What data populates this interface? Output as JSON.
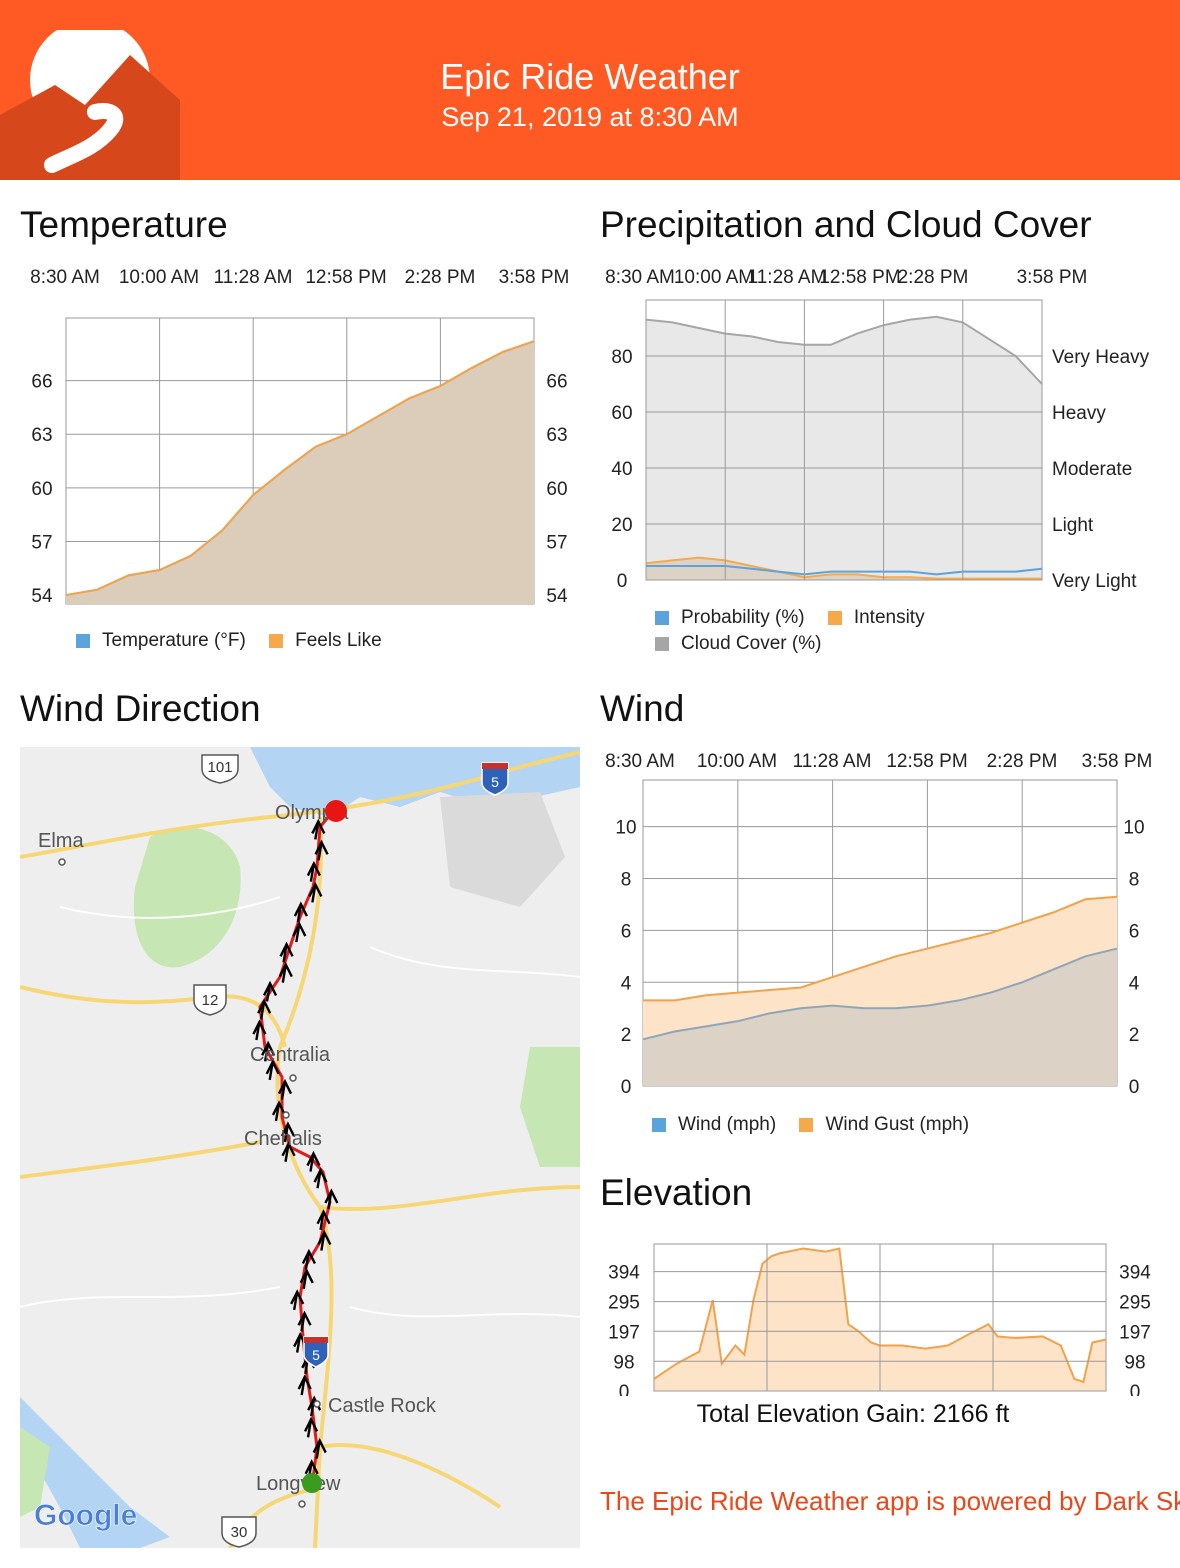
{
  "header": {
    "title": "Epic Ride Weather",
    "subtitle": "Sep 21, 2019 at 8:30 AM",
    "colors": {
      "brand": "#ff5a23",
      "logo_dark": "#d6481c"
    },
    "logo_icon": "road-mountain-logo-icon"
  },
  "temperature": {
    "title": "Temperature",
    "x_ticks": [
      "8:30 AM",
      "10:00 AM",
      "11:28 AM",
      "12:58 PM",
      "2:28 PM",
      "3:58 PM"
    ],
    "y_ticks": [
      "54",
      "57",
      "60",
      "63",
      "66"
    ],
    "legend": [
      {
        "label": "Temperature (°F)",
        "color": "#5ba3dc"
      },
      {
        "label": "Feels Like",
        "color": "#f6a94a"
      }
    ]
  },
  "precipitation": {
    "title": "Precipitation and Cloud Cover",
    "x_ticks": [
      "8:30 AM",
      "10:00 AM",
      "11:28 AM",
      "12:58 PM",
      "2:28 PM",
      "3:58 PM"
    ],
    "y_ticks": [
      "0",
      "20",
      "40",
      "60",
      "80"
    ],
    "intensity_labels": [
      "Very Light",
      "Light",
      "Moderate",
      "Heavy",
      "Very Heavy"
    ],
    "legend": [
      {
        "label": "Probability (%)",
        "color": "#5ba3dc"
      },
      {
        "label": "Intensity",
        "color": "#f6a94a"
      },
      {
        "label": "Cloud Cover (%)",
        "color": "#a6a6a6"
      }
    ]
  },
  "wind_direction": {
    "title": "Wind Direction",
    "map_labels": {
      "olympia": "Olympia",
      "elma": "Elma",
      "centralia": "Centralia",
      "chehalis": "Chehalis",
      "castle_rock": "Castle Rock",
      "longview": "Longview",
      "hwy_101": "101",
      "hwy_12": "12",
      "hwy_30": "30",
      "i5_north": "5",
      "i5_south": "5",
      "google": "Google"
    },
    "colors": {
      "route": "#e01b1b",
      "start": "#3a9b1f",
      "end": "#e81515",
      "wind_arrow": "#000000"
    }
  },
  "wind": {
    "title": "Wind",
    "x_ticks": [
      "8:30 AM",
      "10:00 AM",
      "11:28 AM",
      "12:58 PM",
      "2:28 PM",
      "3:58 PM"
    ],
    "y_ticks": [
      "0",
      "2",
      "4",
      "6",
      "8",
      "10"
    ],
    "legend": [
      {
        "label": "Wind (mph)",
        "color": "#5ba3dc"
      },
      {
        "label": "Wind Gust (mph)",
        "color": "#f6a94a"
      }
    ]
  },
  "elevation": {
    "title": "Elevation",
    "y_ticks": [
      "0",
      "98",
      "197",
      "295",
      "394"
    ],
    "total_gain": "Total Elevation Gain: 2166 ft"
  },
  "footer_note": "The Epic Ride Weather app is powered by Dark Sky",
  "chart_data": [
    {
      "type": "area",
      "title": "Temperature",
      "x": [
        "8:30 AM",
        "9:00 AM",
        "9:30 AM",
        "10:00 AM",
        "10:30 AM",
        "11:00 AM",
        "11:28 AM",
        "12:00 PM",
        "12:30 PM",
        "12:58 PM",
        "1:30 PM",
        "2:00 PM",
        "2:28 PM",
        "3:00 PM",
        "3:30 PM",
        "3:58 PM"
      ],
      "series": [
        {
          "name": "Temperature (°F)",
          "values": [
            54.0,
            54.3,
            55.1,
            55.4,
            56.2,
            57.6,
            59.6,
            61.0,
            62.3,
            63.0,
            64.0,
            65.0,
            65.7,
            66.7,
            67.6,
            68.2
          ]
        },
        {
          "name": "Feels Like",
          "values": [
            54.0,
            54.3,
            55.1,
            55.4,
            56.2,
            57.6,
            59.6,
            61.0,
            62.3,
            63.0,
            64.0,
            65.0,
            65.7,
            66.7,
            67.6,
            68.2
          ]
        }
      ],
      "ylim": [
        53.5,
        69.5
      ],
      "grid": true,
      "legend": "bottom"
    },
    {
      "type": "area",
      "title": "Precipitation and Cloud Cover",
      "x": [
        "8:30 AM",
        "9:00 AM",
        "9:30 AM",
        "10:00 AM",
        "10:30 AM",
        "11:00 AM",
        "11:28 AM",
        "12:00 PM",
        "12:30 PM",
        "12:58 PM",
        "1:30 PM",
        "2:00 PM",
        "2:28 PM",
        "3:00 PM",
        "3:30 PM",
        "3:58 PM"
      ],
      "series": [
        {
          "name": "Cloud Cover (%)",
          "values": [
            93,
            92,
            90,
            88,
            87,
            85,
            84,
            84,
            88,
            91,
            93,
            94,
            92,
            86,
            80,
            70
          ]
        },
        {
          "name": "Probability (%)",
          "values": [
            5,
            5,
            5,
            5,
            4,
            3,
            2,
            3,
            3,
            3,
            3,
            2,
            3,
            3,
            3,
            4
          ]
        },
        {
          "name": "Intensity",
          "values": [
            6,
            7,
            8,
            7,
            5,
            3,
            1,
            2,
            2,
            1,
            1,
            0.5,
            0.5,
            0.5,
            0.5,
            0.5
          ]
        }
      ],
      "ylim": [
        0,
        100
      ],
      "grid": true,
      "legend": "bottom"
    },
    {
      "type": "area",
      "title": "Wind",
      "x": [
        "8:30 AM",
        "9:00 AM",
        "9:30 AM",
        "10:00 AM",
        "10:30 AM",
        "11:00 AM",
        "11:28 AM",
        "12:00 PM",
        "12:30 PM",
        "12:58 PM",
        "1:30 PM",
        "2:00 PM",
        "2:28 PM",
        "3:00 PM",
        "3:30 PM",
        "3:58 PM"
      ],
      "series": [
        {
          "name": "Wind (mph)",
          "values": [
            1.8,
            2.1,
            2.3,
            2.5,
            2.8,
            3.0,
            3.1,
            3.0,
            3.0,
            3.1,
            3.3,
            3.6,
            4.0,
            4.5,
            5.0,
            5.3
          ]
        },
        {
          "name": "Wind Gust (mph)",
          "values": [
            3.3,
            3.3,
            3.5,
            3.6,
            3.7,
            3.8,
            4.2,
            4.6,
            5.0,
            5.3,
            5.6,
            5.9,
            6.3,
            6.7,
            7.2,
            7.3
          ]
        }
      ],
      "ylim": [
        0,
        11.8
      ],
      "grid": true,
      "legend": "bottom"
    },
    {
      "type": "area",
      "title": "Elevation",
      "x": [
        0,
        0.05,
        0.1,
        0.13,
        0.15,
        0.18,
        0.2,
        0.22,
        0.24,
        0.26,
        0.28,
        0.33,
        0.38,
        0.41,
        0.43,
        0.45,
        0.48,
        0.5,
        0.55,
        0.6,
        0.65,
        0.7,
        0.74,
        0.76,
        0.8,
        0.86,
        0.9,
        0.93,
        0.95,
        0.97,
        1.0
      ],
      "series": [
        {
          "name": "Elevation",
          "values": [
            40,
            90,
            130,
            300,
            90,
            150,
            120,
            300,
            420,
            445,
            455,
            470,
            460,
            470,
            220,
            200,
            160,
            150,
            150,
            140,
            150,
            190,
            220,
            180,
            175,
            180,
            150,
            40,
            30,
            160,
            170
          ]
        }
      ],
      "ylim": [
        0,
        485
      ],
      "grid": true,
      "legend": "none"
    }
  ]
}
